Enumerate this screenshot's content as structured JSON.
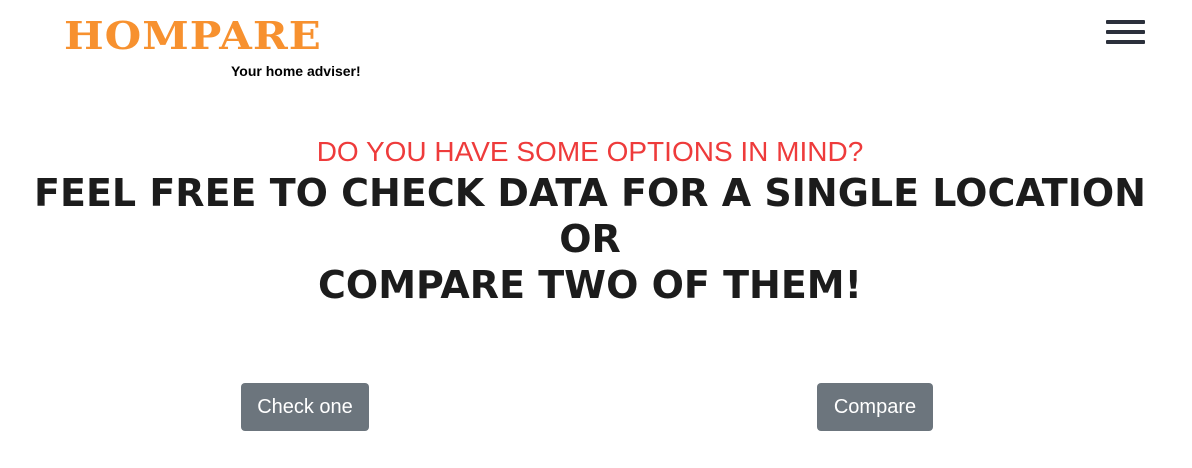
{
  "header": {
    "logo_text": "HOMPARE",
    "tagline": "Your home adviser!",
    "menu_icon": "hamburger-menu-icon"
  },
  "hero": {
    "subtitle": "DO YOU HAVE SOME OPTIONS IN MIND?",
    "headline_line1": "FEEL FREE TO CHECK DATA FOR A SINGLE LOCATION OR",
    "headline_line2": "COMPARE TWO OF THEM!"
  },
  "actions": {
    "check_one_label": "Check one",
    "compare_label": "Compare"
  },
  "colors": {
    "brand_orange": "#f7912f",
    "subtitle_red": "#ee3b3b",
    "button_gray": "#6c757d",
    "menu_icon": "#2b303b"
  }
}
